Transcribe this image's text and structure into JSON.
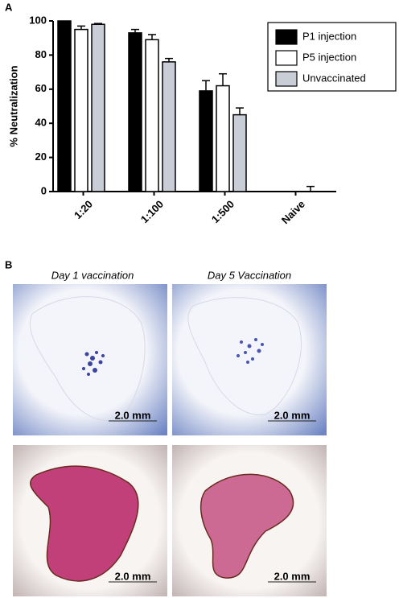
{
  "chart_data": {
    "type": "bar",
    "panel_label": "A",
    "ylabel": "% Neutralization",
    "categories": [
      "1:20",
      "1:100",
      "1:500",
      "Naive"
    ],
    "series": [
      {
        "name": "P1 injection",
        "color": "#000000",
        "values": [
          100,
          93,
          59,
          0
        ],
        "errors": [
          0,
          2,
          6,
          0
        ]
      },
      {
        "name": "P5 injection",
        "color": "#ffffff",
        "values": [
          95,
          89,
          62,
          0
        ],
        "errors": [
          2,
          3,
          7,
          0
        ]
      },
      {
        "name": "Unvaccinated",
        "color": "#c8cdd6",
        "values": [
          98,
          76,
          45,
          0
        ],
        "errors": [
          0.5,
          2,
          4,
          3
        ]
      }
    ],
    "ylim": [
      0,
      100
    ],
    "yticks": [
      0,
      20,
      40,
      60,
      80,
      100
    ],
    "legend": "top-right"
  },
  "panel_b": {
    "label": "B",
    "columns": [
      "Day 1 vaccination",
      "Day 5 Vaccination"
    ],
    "scale_bars": [
      "2.0 mm",
      "2.0 mm",
      "2.0 mm",
      "2.0 mm"
    ]
  }
}
